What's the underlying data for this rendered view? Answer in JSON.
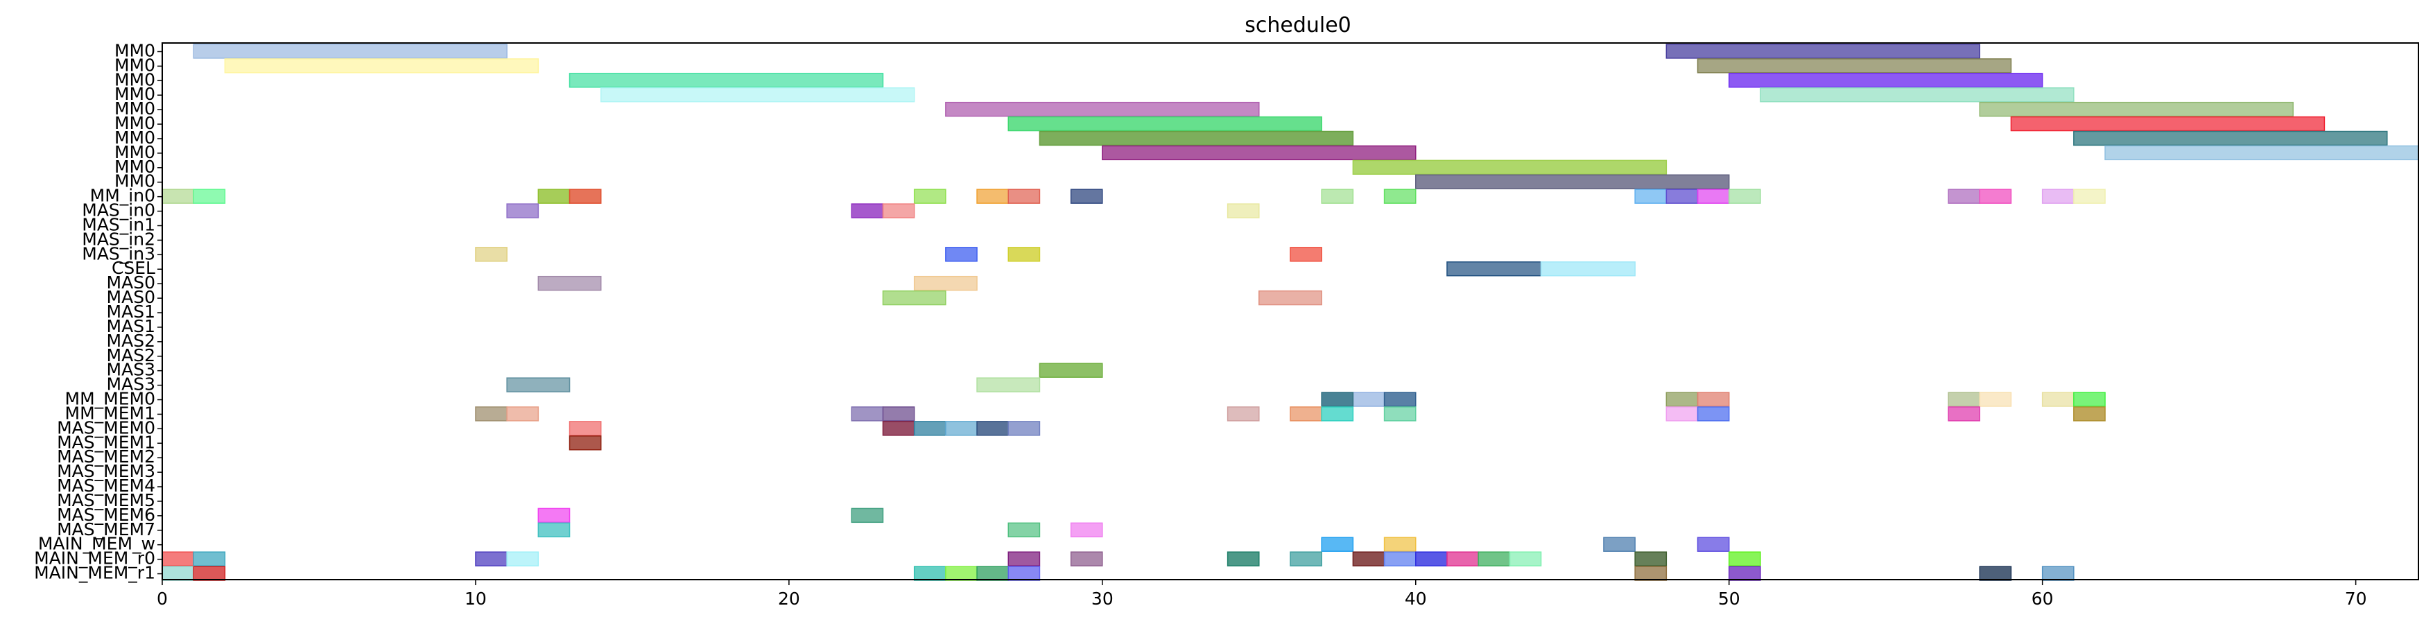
{
  "chart_data": {
    "type": "gantt",
    "title": "schedule0",
    "xlim": [
      0,
      72
    ],
    "xticks": [
      0,
      10,
      20,
      30,
      40,
      50,
      60,
      70
    ],
    "grid": false,
    "legend": "none",
    "rows": [
      "MM0",
      "MM0",
      "MM0",
      "MM0",
      "MM0",
      "MM0",
      "MM0",
      "MM0",
      "MM0",
      "MM0",
      "MM_in0",
      "MAS_in0",
      "MAS_in1",
      "MAS_in2",
      "MAS_in3",
      "CSEL",
      "MAS0",
      "MAS0",
      "MAS1",
      "MAS1",
      "MAS2",
      "MAS2",
      "MAS3",
      "MAS3",
      "MM_MEM0",
      "MM_MEM1",
      "MAS_MEM0",
      "MAS_MEM1",
      "MAS_MEM2",
      "MAS_MEM3",
      "MAS_MEM4",
      "MAS_MEM5",
      "MAS_MEM6",
      "MAS_MEM7",
      "MAIN_MEM_w",
      "MAIN_MEM_r0",
      "MAIN_MEM_r1"
    ],
    "tasks": [
      {
        "row": 0,
        "start": 1,
        "end": 11,
        "color": "#9ab8e0",
        "alpha": 0.7
      },
      {
        "row": 1,
        "start": 2,
        "end": 12,
        "color": "#fff5a0",
        "alpha": 0.7
      },
      {
        "row": 2,
        "start": 13,
        "end": 23,
        "color": "#40e0a0",
        "alpha": 0.7
      },
      {
        "row": 3,
        "start": 14,
        "end": 24,
        "color": "#b0f5f5",
        "alpha": 0.7
      },
      {
        "row": 4,
        "start": 25,
        "end": 35,
        "color": "#b060b0",
        "alpha": 0.75
      },
      {
        "row": 5,
        "start": 27,
        "end": 37,
        "color": "#40d870",
        "alpha": 0.8
      },
      {
        "row": 6,
        "start": 28,
        "end": 38,
        "color": "#66a040",
        "alpha": 0.85
      },
      {
        "row": 7,
        "start": 30,
        "end": 40,
        "color": "#902080",
        "alpha": 0.75
      },
      {
        "row": 8,
        "start": 38,
        "end": 48,
        "color": "#a0d050",
        "alpha": 0.85
      },
      {
        "row": 9,
        "start": 40,
        "end": 50,
        "color": "#606080",
        "alpha": 0.8
      },
      {
        "row": 0,
        "start": 48,
        "end": 58,
        "color": "#4a40a0",
        "alpha": 0.75
      },
      {
        "row": 1,
        "start": 49,
        "end": 59,
        "color": "#808050",
        "alpha": 0.7
      },
      {
        "row": 2,
        "start": 50,
        "end": 60,
        "color": "#7030f0",
        "alpha": 0.8
      },
      {
        "row": 3,
        "start": 51,
        "end": 61,
        "color": "#90e0c0",
        "alpha": 0.7
      },
      {
        "row": 4,
        "start": 58,
        "end": 68,
        "color": "#90b870",
        "alpha": 0.7
      },
      {
        "row": 5,
        "start": 59,
        "end": 69,
        "color": "#f02030",
        "alpha": 0.7
      },
      {
        "row": 6,
        "start": 61,
        "end": 71,
        "color": "#307880",
        "alpha": 0.75
      },
      {
        "row": 7,
        "start": 62,
        "end": 72,
        "color": "#90c0e0",
        "alpha": 0.7
      },
      {
        "row": 10,
        "start": 0,
        "end": 1,
        "color": "#b0d890",
        "alpha": 0.7
      },
      {
        "row": 10,
        "start": 1,
        "end": 2,
        "color": "#60f890",
        "alpha": 0.7
      },
      {
        "row": 10,
        "start": 12,
        "end": 13,
        "color": "#90c030",
        "alpha": 0.8
      },
      {
        "row": 10,
        "start": 13,
        "end": 14,
        "color": "#e05030",
        "alpha": 0.8
      },
      {
        "row": 10,
        "start": 24,
        "end": 25,
        "color": "#90e050",
        "alpha": 0.7
      },
      {
        "row": 10,
        "start": 26,
        "end": 27,
        "color": "#f0a030",
        "alpha": 0.7
      },
      {
        "row": 10,
        "start": 27,
        "end": 28,
        "color": "#e06050",
        "alpha": 0.7
      },
      {
        "row": 10,
        "start": 29,
        "end": 30,
        "color": "#304880",
        "alpha": 0.75
      },
      {
        "row": 10,
        "start": 37,
        "end": 38,
        "color": "#a0e090",
        "alpha": 0.7
      },
      {
        "row": 10,
        "start": 39,
        "end": 40,
        "color": "#60e060",
        "alpha": 0.7
      },
      {
        "row": 10,
        "start": 47,
        "end": 48,
        "color": "#60b0f0",
        "alpha": 0.7
      },
      {
        "row": 10,
        "start": 48,
        "end": 49,
        "color": "#6050d0",
        "alpha": 0.75
      },
      {
        "row": 10,
        "start": 49,
        "end": 50,
        "color": "#e040f0",
        "alpha": 0.7
      },
      {
        "row": 10,
        "start": 50,
        "end": 51,
        "color": "#a0e0a0",
        "alpha": 0.7
      },
      {
        "row": 10,
        "start": 57,
        "end": 58,
        "color": "#b070c0",
        "alpha": 0.75
      },
      {
        "row": 10,
        "start": 58,
        "end": 59,
        "color": "#f050c0",
        "alpha": 0.75
      },
      {
        "row": 10,
        "start": 60,
        "end": 61,
        "color": "#e0a0f0",
        "alpha": 0.7
      },
      {
        "row": 10,
        "start": 61,
        "end": 62,
        "color": "#f0f0b0",
        "alpha": 0.7
      },
      {
        "row": 11,
        "start": 11,
        "end": 12,
        "color": "#9070c8",
        "alpha": 0.75
      },
      {
        "row": 11,
        "start": 22,
        "end": 23,
        "color": "#9030c0",
        "alpha": 0.8
      },
      {
        "row": 11,
        "start": 23,
        "end": 24,
        "color": "#f08080",
        "alpha": 0.7
      },
      {
        "row": 11,
        "start": 34,
        "end": 35,
        "color": "#e8e8a0",
        "alpha": 0.7
      },
      {
        "row": 14,
        "start": 10,
        "end": 11,
        "color": "#e0d080",
        "alpha": 0.7
      },
      {
        "row": 14,
        "start": 25,
        "end": 26,
        "color": "#4060f0",
        "alpha": 0.75
      },
      {
        "row": 14,
        "start": 27,
        "end": 28,
        "color": "#d0d030",
        "alpha": 0.8
      },
      {
        "row": 14,
        "start": 36,
        "end": 37,
        "color": "#f05040",
        "alpha": 0.75
      },
      {
        "row": 15,
        "start": 41,
        "end": 44,
        "color": "#205080",
        "alpha": 0.7
      },
      {
        "row": 15,
        "start": 44,
        "end": 47,
        "color": "#a0e8f8",
        "alpha": 0.75
      },
      {
        "row": 16,
        "start": 12,
        "end": 14,
        "color": "#a088a8",
        "alpha": 0.7
      },
      {
        "row": 16,
        "start": 24,
        "end": 26,
        "color": "#f0c890",
        "alpha": 0.7
      },
      {
        "row": 17,
        "start": 23,
        "end": 25,
        "color": "#90d060",
        "alpha": 0.7
      },
      {
        "row": 17,
        "start": 35,
        "end": 37,
        "color": "#e09080",
        "alpha": 0.7
      },
      {
        "row": 22,
        "start": 28,
        "end": 30,
        "color": "#70b040",
        "alpha": 0.8
      },
      {
        "row": 23,
        "start": 11,
        "end": 13,
        "color": "#6090a0",
        "alpha": 0.7
      },
      {
        "row": 23,
        "start": 26,
        "end": 28,
        "color": "#b0e0a0",
        "alpha": 0.7
      },
      {
        "row": 24,
        "start": 37,
        "end": 39,
        "color": "#90b0e0",
        "alpha": 0.7
      },
      {
        "row": 24,
        "start": 37,
        "end": 38,
        "color": "#307080",
        "alpha": 0.8
      },
      {
        "row": 24,
        "start": 39,
        "end": 40,
        "color": "#306090",
        "alpha": 0.8
      },
      {
        "row": 24,
        "start": 48,
        "end": 49,
        "color": "#90a060",
        "alpha": 0.75
      },
      {
        "row": 24,
        "start": 49,
        "end": 50,
        "color": "#e08070",
        "alpha": 0.75
      },
      {
        "row": 24,
        "start": 57,
        "end": 58,
        "color": "#b0c090",
        "alpha": 0.75
      },
      {
        "row": 24,
        "start": 58,
        "end": 59,
        "color": "#f8e0b0",
        "alpha": 0.7
      },
      {
        "row": 24,
        "start": 60,
        "end": 61,
        "color": "#e8e0a0",
        "alpha": 0.7
      },
      {
        "row": 24,
        "start": 61,
        "end": 62,
        "color": "#40f040",
        "alpha": 0.7
      },
      {
        "row": 25,
        "start": 10,
        "end": 11,
        "color": "#a09070",
        "alpha": 0.75
      },
      {
        "row": 25,
        "start": 11,
        "end": 12,
        "color": "#e8a088",
        "alpha": 0.7
      },
      {
        "row": 25,
        "start": 22,
        "end": 23,
        "color": "#8070b0",
        "alpha": 0.75
      },
      {
        "row": 25,
        "start": 23,
        "end": 24,
        "color": "#705090",
        "alpha": 0.75
      },
      {
        "row": 25,
        "start": 34,
        "end": 35,
        "color": "#d0a0a0",
        "alpha": 0.7
      },
      {
        "row": 25,
        "start": 36,
        "end": 37,
        "color": "#e89060",
        "alpha": 0.7
      },
      {
        "row": 25,
        "start": 37,
        "end": 38,
        "color": "#30d0c0",
        "alpha": 0.75
      },
      {
        "row": 25,
        "start": 39,
        "end": 40,
        "color": "#60d0a0",
        "alpha": 0.7
      },
      {
        "row": 25,
        "start": 48,
        "end": 49,
        "color": "#f0a0f0",
        "alpha": 0.7
      },
      {
        "row": 25,
        "start": 49,
        "end": 50,
        "color": "#5070f0",
        "alpha": 0.75
      },
      {
        "row": 25,
        "start": 57,
        "end": 58,
        "color": "#e040b0",
        "alpha": 0.75
      },
      {
        "row": 25,
        "start": 61,
        "end": 62,
        "color": "#b09030",
        "alpha": 0.8
      },
      {
        "row": 26,
        "start": 13,
        "end": 14,
        "color": "#f07070",
        "alpha": 0.75
      },
      {
        "row": 26,
        "start": 23,
        "end": 24,
        "color": "#802040",
        "alpha": 0.8
      },
      {
        "row": 26,
        "start": 24,
        "end": 25,
        "color": "#3080a0",
        "alpha": 0.75
      },
      {
        "row": 26,
        "start": 25,
        "end": 26,
        "color": "#60a8d0",
        "alpha": 0.7
      },
      {
        "row": 26,
        "start": 26,
        "end": 27,
        "color": "#305080",
        "alpha": 0.8
      },
      {
        "row": 26,
        "start": 27,
        "end": 28,
        "color": "#7080c0",
        "alpha": 0.75
      },
      {
        "row": 27,
        "start": 13,
        "end": 14,
        "color": "#902010",
        "alpha": 0.75
      },
      {
        "row": 32,
        "start": 12,
        "end": 13,
        "color": "#f040f0",
        "alpha": 0.7
      },
      {
        "row": 32,
        "start": 22,
        "end": 23,
        "color": "#40a080",
        "alpha": 0.75
      },
      {
        "row": 33,
        "start": 12,
        "end": 13,
        "color": "#40c0c0",
        "alpha": 0.75
      },
      {
        "row": 33,
        "start": 27,
        "end": 28,
        "color": "#50c080",
        "alpha": 0.7
      },
      {
        "row": 33,
        "start": 29,
        "end": 30,
        "color": "#f080f0",
        "alpha": 0.75
      },
      {
        "row": 34,
        "start": 37,
        "end": 38,
        "color": "#20a0f0",
        "alpha": 0.75
      },
      {
        "row": 34,
        "start": 39,
        "end": 40,
        "color": "#f0c040",
        "alpha": 0.7
      },
      {
        "row": 34,
        "start": 46,
        "end": 47,
        "color": "#5080b0",
        "alpha": 0.75
      },
      {
        "row": 34,
        "start": 49,
        "end": 50,
        "color": "#6050e0",
        "alpha": 0.75
      },
      {
        "row": 35,
        "start": 0,
        "end": 1,
        "color": "#f05050",
        "alpha": 0.75
      },
      {
        "row": 35,
        "start": 1,
        "end": 2,
        "color": "#40a8c0",
        "alpha": 0.75
      },
      {
        "row": 35,
        "start": 10,
        "end": 11,
        "color": "#5040c0",
        "alpha": 0.75
      },
      {
        "row": 35,
        "start": 11,
        "end": 12,
        "color": "#a0f0f8",
        "alpha": 0.7
      },
      {
        "row": 35,
        "start": 27,
        "end": 28,
        "color": "#802080",
        "alpha": 0.75
      },
      {
        "row": 35,
        "start": 29,
        "end": 30,
        "color": "#906090",
        "alpha": 0.75
      },
      {
        "row": 35,
        "start": 34,
        "end": 35,
        "color": "#20806a",
        "alpha": 0.8
      },
      {
        "row": 35,
        "start": 36,
        "end": 37,
        "color": "#40a0a0",
        "alpha": 0.75
      },
      {
        "row": 35,
        "start": 38,
        "end": 39,
        "color": "#702020",
        "alpha": 0.8
      },
      {
        "row": 35,
        "start": 39,
        "end": 40,
        "color": "#6080f0",
        "alpha": 0.75
      },
      {
        "row": 35,
        "start": 40,
        "end": 41,
        "color": "#3030e0",
        "alpha": 0.8
      },
      {
        "row": 35,
        "start": 41,
        "end": 42,
        "color": "#e03090",
        "alpha": 0.75
      },
      {
        "row": 35,
        "start": 42,
        "end": 43,
        "color": "#40b060",
        "alpha": 0.75
      },
      {
        "row": 35,
        "start": 43,
        "end": 44,
        "color": "#80f0b0",
        "alpha": 0.7
      },
      {
        "row": 35,
        "start": 47,
        "end": 48,
        "color": "#406030",
        "alpha": 0.8
      },
      {
        "row": 35,
        "start": 50,
        "end": 51,
        "color": "#60f020",
        "alpha": 0.75
      },
      {
        "row": 36,
        "start": 0,
        "end": 1,
        "color": "#90d8d0",
        "alpha": 0.75
      },
      {
        "row": 36,
        "start": 1,
        "end": 2,
        "color": "#d02020",
        "alpha": 0.75
      },
      {
        "row": 36,
        "start": 24,
        "end": 25,
        "color": "#30c0b0",
        "alpha": 0.75
      },
      {
        "row": 36,
        "start": 25,
        "end": 26,
        "color": "#80f040",
        "alpha": 0.75
      },
      {
        "row": 36,
        "start": 26,
        "end": 27,
        "color": "#30a060",
        "alpha": 0.75
      },
      {
        "row": 36,
        "start": 27,
        "end": 28,
        "color": "#6060f0",
        "alpha": 0.75
      },
      {
        "row": 36,
        "start": 47,
        "end": 48,
        "color": "#907040",
        "alpha": 0.75
      },
      {
        "row": 36,
        "start": 50,
        "end": 51,
        "color": "#7030c0",
        "alpha": 0.8
      },
      {
        "row": 36,
        "start": 58,
        "end": 59,
        "color": "#203858",
        "alpha": 0.8
      },
      {
        "row": 36,
        "start": 60,
        "end": 61,
        "color": "#5090c0",
        "alpha": 0.7
      }
    ]
  }
}
